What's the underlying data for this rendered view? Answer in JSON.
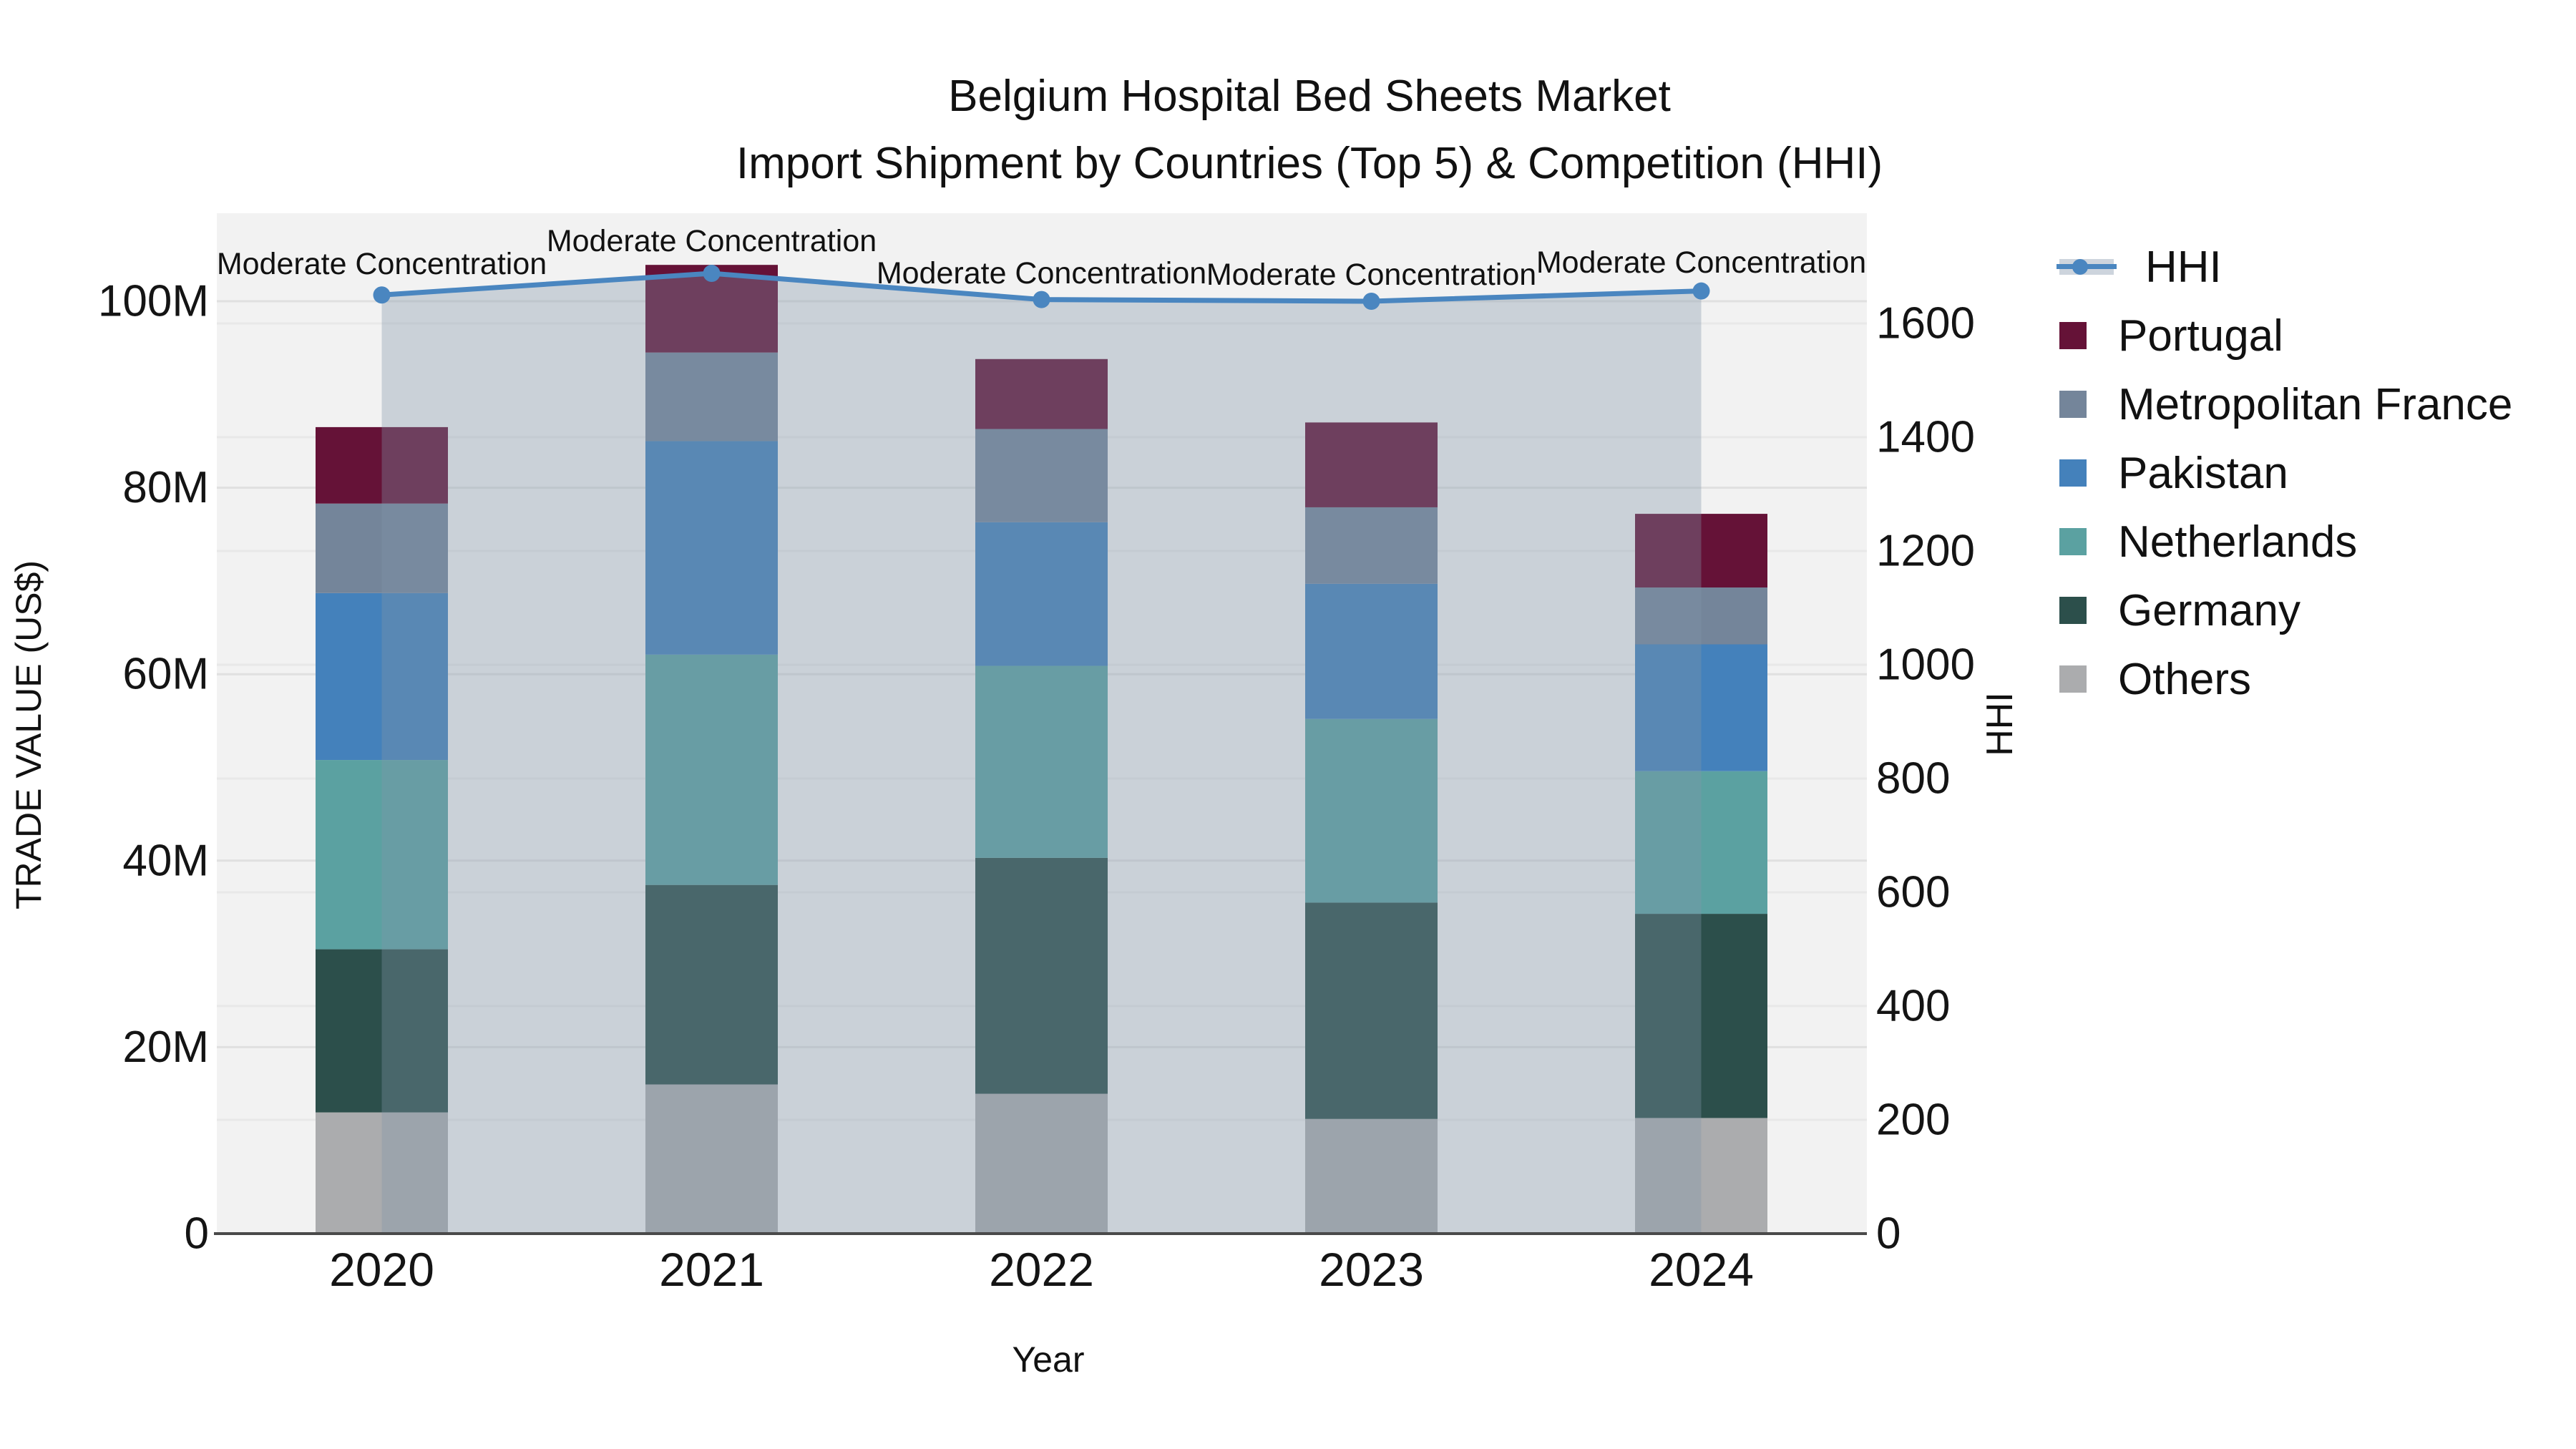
{
  "title": {
    "line1": "Belgium Hospital Bed Sheets Market",
    "line2": "Import Shipment by Countries (Top 5) & Competition (HHI)"
  },
  "axes": {
    "left": {
      "title": "TRADE VALUE (US$)",
      "tick_labels": [
        "0",
        "20M",
        "40M",
        "60M",
        "80M",
        "100M"
      ],
      "tick_values": [
        0,
        20,
        40,
        60,
        80,
        100
      ]
    },
    "right": {
      "title": "HHI",
      "tick_labels": [
        "0",
        "200",
        "400",
        "600",
        "800",
        "1000",
        "1200",
        "1400",
        "1600"
      ],
      "tick_values": [
        0,
        200,
        400,
        600,
        800,
        1000,
        1200,
        1400,
        1600
      ]
    },
    "bottom": {
      "title": "Year"
    }
  },
  "chart_data": {
    "type": "bar",
    "subtype": "stacked-bars-with-line-overlay",
    "categories": [
      "2020",
      "2021",
      "2022",
      "2023",
      "2024"
    ],
    "value_unit": "million US$",
    "series": [
      {
        "name": "Others",
        "color": "#ABACAE",
        "values": [
          13.0,
          16.0,
          15.0,
          12.3,
          12.4
        ]
      },
      {
        "name": "Germany",
        "color": "#2C4F4B",
        "values": [
          17.5,
          21.4,
          25.3,
          23.2,
          21.9
        ]
      },
      {
        "name": "Netherlands",
        "color": "#5BA1A1",
        "values": [
          20.3,
          24.7,
          20.6,
          19.7,
          15.3
        ]
      },
      {
        "name": "Pakistan",
        "color": "#4481BB",
        "values": [
          17.9,
          22.9,
          15.4,
          14.5,
          13.6
        ]
      },
      {
        "name": "Metropolitan France",
        "color": "#74859A",
        "values": [
          9.6,
          9.5,
          10.0,
          8.2,
          6.1
        ]
      },
      {
        "name": "Portugal",
        "color": "#651237",
        "values": [
          8.2,
          9.4,
          7.5,
          9.1,
          7.9
        ]
      }
    ],
    "stack_totals": [
      86.5,
      103.9,
      93.8,
      87.0,
      77.2
    ],
    "line_series": {
      "name": "HHI",
      "axis": "right",
      "color": "#4A86C0",
      "area_color": "rgba(130,148,168,0.35)",
      "values": [
        1650,
        1688,
        1642,
        1639,
        1657
      ]
    },
    "annotations": [
      {
        "text": "Moderate Concentration",
        "category": "2020"
      },
      {
        "text": "Moderate Concentration",
        "category": "2021"
      },
      {
        "text": "Moderate Concentration",
        "category": "2022"
      },
      {
        "text": "Moderate Concentration",
        "category": "2023"
      },
      {
        "text": "Moderate Concentration",
        "category": "2024"
      }
    ],
    "ylim_left": [
      0,
      109.5
    ],
    "ylim_right": [
      0,
      1794
    ],
    "grid": true,
    "legend_position": "right",
    "plot_bg": "#f2f2f2"
  },
  "legend": {
    "items": [
      {
        "label": "HHI",
        "type": "line",
        "color": "#4A86C0"
      },
      {
        "label": "Portugal",
        "type": "swatch",
        "color": "#651237"
      },
      {
        "label": "Metropolitan France",
        "type": "swatch",
        "color": "#74859A"
      },
      {
        "label": "Pakistan",
        "type": "swatch",
        "color": "#4481BB"
      },
      {
        "label": "Netherlands",
        "type": "swatch",
        "color": "#5BA1A1"
      },
      {
        "label": "Germany",
        "type": "swatch",
        "color": "#2C4F4B"
      },
      {
        "label": "Others",
        "type": "swatch",
        "color": "#ABACAE"
      }
    ]
  }
}
